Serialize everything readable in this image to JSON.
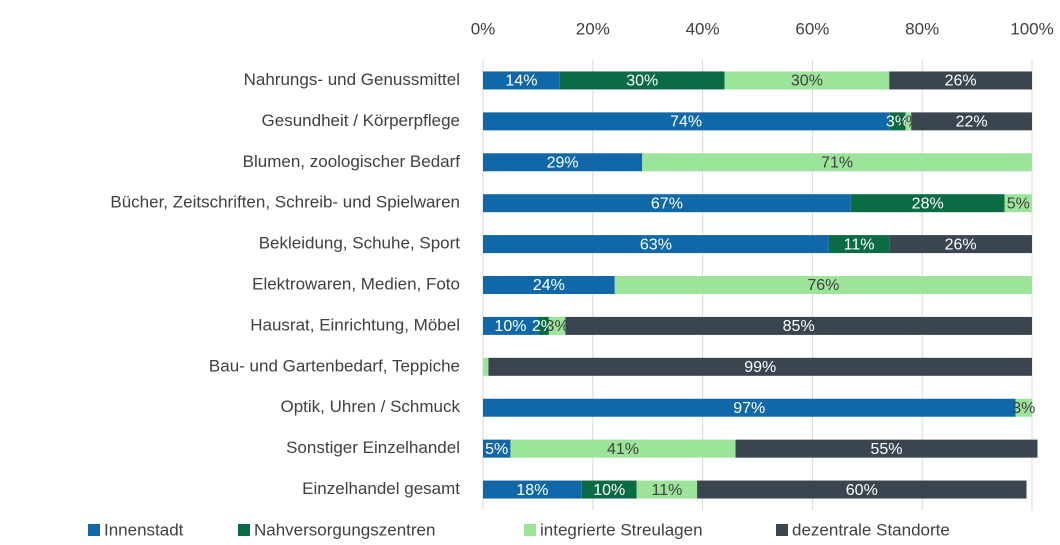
{
  "chart_data": {
    "type": "stacked_barh",
    "categories": [
      "Nahrungs- und Genussmittel",
      "Gesundheit / Körperpflege",
      "Blumen, zoologischer Bedarf",
      "Bücher, Zeitschriften, Schreib- und Spielwaren",
      "Bekleidung, Schuhe, Sport",
      "Elektrowaren, Medien, Foto",
      "Hausrat, Einrichtung, Möbel",
      "Bau- und Gartenbedarf, Teppiche",
      "Optik, Uhren / Schmuck",
      "Sonstiger Einzelhandel",
      "Einzelhandel gesamt"
    ],
    "series": [
      {
        "name": "Innenstadt",
        "color": "#1068a8",
        "values": [
          14,
          74,
          29,
          67,
          63,
          24,
          10,
          0,
          97,
          5,
          18
        ],
        "value_labels": [
          "14%",
          "74%",
          "29%",
          "67%",
          "63%",
          "24%",
          "10%",
          null,
          "97%",
          "5%",
          "18%"
        ]
      },
      {
        "name": "Nahversorgungszentren",
        "color": "#0b6b44",
        "values": [
          30,
          3,
          0,
          28,
          11,
          0,
          2,
          0,
          0,
          0,
          10
        ],
        "value_labels": [
          "30%",
          "3%",
          null,
          "28%",
          "11%",
          null,
          "2%",
          null,
          null,
          null,
          "10%"
        ]
      },
      {
        "name": "integrierte Streulagen",
        "color": "#9de49b",
        "values": [
          30,
          1,
          71,
          5,
          0,
          76,
          3,
          1,
          3,
          41,
          11
        ],
        "value_labels": [
          "30%",
          "1%",
          "71%",
          "5%",
          null,
          "76%",
          "3%",
          null,
          "3%",
          "41%",
          "11%"
        ]
      },
      {
        "name": "dezentrale Standorte",
        "color": "#3b4550",
        "values": [
          26,
          22,
          0,
          0,
          26,
          0,
          85,
          99,
          0,
          55,
          60
        ],
        "value_labels": [
          "26%",
          "22%",
          null,
          null,
          "26%",
          null,
          "85%",
          "99%",
          null,
          "55%",
          "60%"
        ]
      }
    ],
    "xlim": [
      0,
      100
    ],
    "xticks": [
      {
        "value": 0,
        "label": "0%"
      },
      {
        "value": 20,
        "label": "20%"
      },
      {
        "value": 40,
        "label": "40%"
      },
      {
        "value": 60,
        "label": "60%"
      },
      {
        "value": 80,
        "label": "80%"
      },
      {
        "value": 100,
        "label": "100%"
      }
    ],
    "grid": true,
    "legend": "bottom"
  }
}
